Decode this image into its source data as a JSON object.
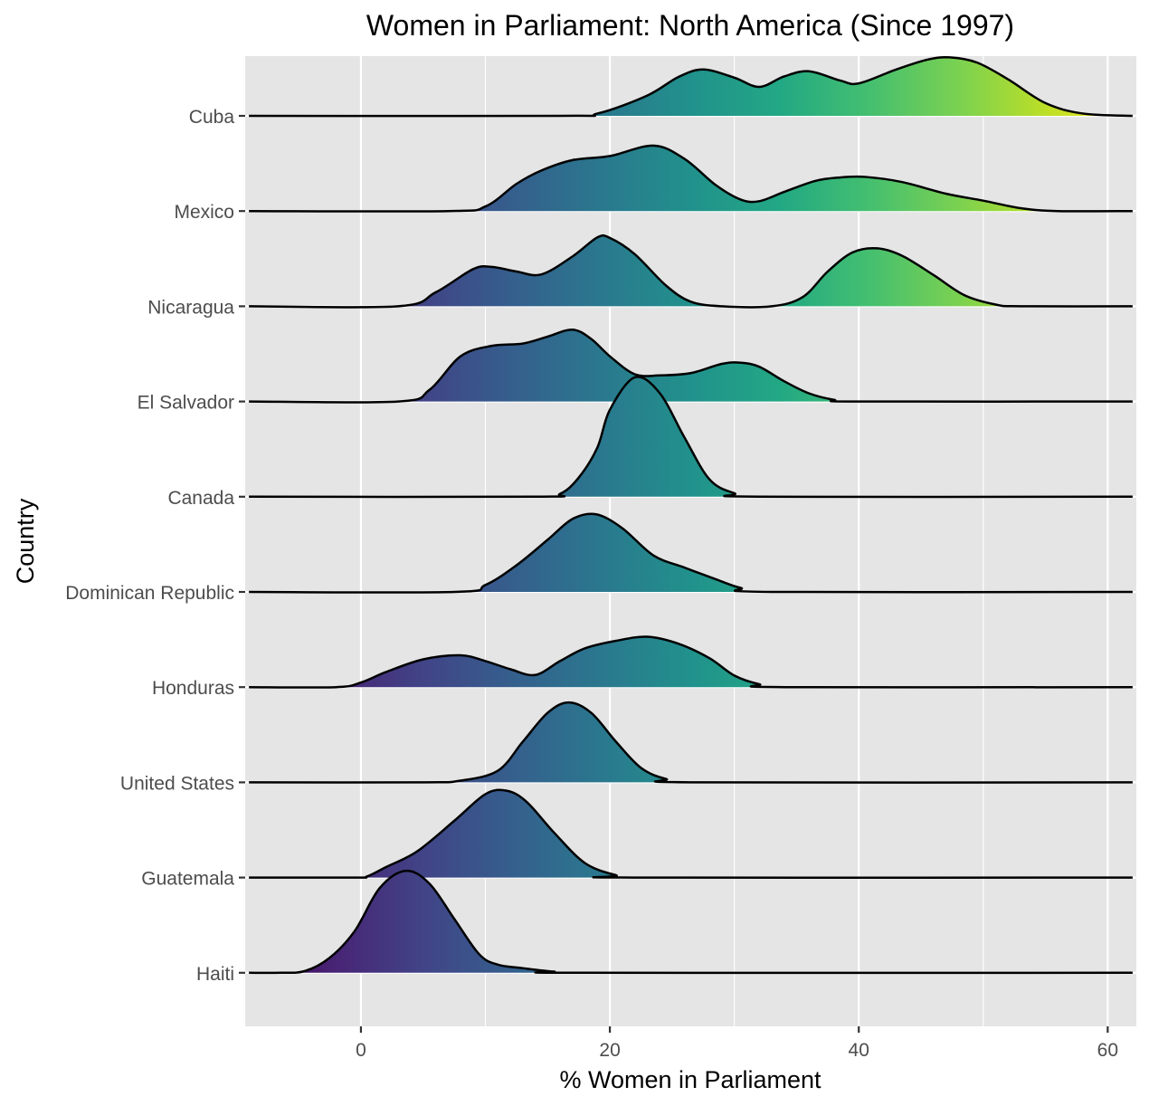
{
  "chart_data": {
    "type": "ridgeline",
    "title": "Women in Parliament: North America (Since 1997)",
    "xlabel": "% Women in Parliament",
    "ylabel": "Country",
    "xlim": [
      -9.3,
      62.3
    ],
    "x_ticks": [
      0,
      20,
      40,
      60
    ],
    "grid": true,
    "fill_scale": "viridis, by x value",
    "panel_background": "#e5e5e5",
    "gridline_color": "#ffffff",
    "outline_color": "#000000",
    "categories": [
      "Cuba",
      "Mexico",
      "Nicaragua",
      "El Salvador",
      "Canada",
      "Dominican Republic",
      "Honduras",
      "United States",
      "Guatemala",
      "Haiti"
    ],
    "series": [
      {
        "name": "Cuba",
        "points": [
          [
            -9,
            0
          ],
          [
            16,
            0
          ],
          [
            19,
            0.04
          ],
          [
            23,
            0.35
          ],
          [
            25.5,
            0.67
          ],
          [
            27.5,
            0.8
          ],
          [
            30,
            0.66
          ],
          [
            32,
            0.5
          ],
          [
            34,
            0.68
          ],
          [
            36,
            0.77
          ],
          [
            38.5,
            0.61
          ],
          [
            40,
            0.56
          ],
          [
            43,
            0.8
          ],
          [
            45.5,
            0.97
          ],
          [
            47.3,
            1.01
          ],
          [
            49.5,
            0.92
          ],
          [
            52,
            0.63
          ],
          [
            55,
            0.22
          ],
          [
            58,
            0.04
          ],
          [
            62,
            0
          ]
        ]
      },
      {
        "name": "Mexico",
        "points": [
          [
            -9,
            0
          ],
          [
            7,
            0
          ],
          [
            10,
            0.08
          ],
          [
            12.5,
            0.47
          ],
          [
            14.5,
            0.7
          ],
          [
            17,
            0.88
          ],
          [
            20,
            0.95
          ],
          [
            23.5,
            1.13
          ],
          [
            26,
            0.9
          ],
          [
            28.5,
            0.45
          ],
          [
            30.5,
            0.2
          ],
          [
            32,
            0.17
          ],
          [
            34,
            0.33
          ],
          [
            36.5,
            0.52
          ],
          [
            38.5,
            0.58
          ],
          [
            40.5,
            0.59
          ],
          [
            43.5,
            0.5
          ],
          [
            47,
            0.3
          ],
          [
            50,
            0.18
          ],
          [
            53,
            0.05
          ],
          [
            56,
            0
          ],
          [
            62,
            0
          ]
        ]
      },
      {
        "name": "Nicaragua",
        "points": [
          [
            -9,
            0
          ],
          [
            3,
            0
          ],
          [
            6,
            0.24
          ],
          [
            9,
            0.64
          ],
          [
            10.5,
            0.68
          ],
          [
            12.5,
            0.6
          ],
          [
            14.5,
            0.55
          ],
          [
            17,
            0.86
          ],
          [
            19,
            1.19
          ],
          [
            20,
            1.18
          ],
          [
            22,
            0.9
          ],
          [
            24.5,
            0.36
          ],
          [
            26.5,
            0.08
          ],
          [
            29,
            0
          ],
          [
            33,
            0
          ],
          [
            35.5,
            0.16
          ],
          [
            37.5,
            0.6
          ],
          [
            39.5,
            0.93
          ],
          [
            41.5,
            1.0
          ],
          [
            43.5,
            0.87
          ],
          [
            46,
            0.54
          ],
          [
            48.5,
            0.19
          ],
          [
            51,
            0.03
          ],
          [
            53,
            0
          ],
          [
            62,
            0
          ]
        ]
      },
      {
        "name": "El Salvador",
        "points": [
          [
            -9,
            0
          ],
          [
            3,
            0
          ],
          [
            5.5,
            0.2
          ],
          [
            8,
            0.78
          ],
          [
            10.5,
            0.96
          ],
          [
            13,
            1.0
          ],
          [
            15,
            1.12
          ],
          [
            17,
            1.24
          ],
          [
            18.5,
            1.08
          ],
          [
            20,
            0.78
          ],
          [
            22,
            0.47
          ],
          [
            24,
            0.45
          ],
          [
            26.5,
            0.49
          ],
          [
            29,
            0.65
          ],
          [
            30.5,
            0.67
          ],
          [
            32,
            0.6
          ],
          [
            34,
            0.35
          ],
          [
            36,
            0.14
          ],
          [
            38,
            0.03
          ],
          [
            40,
            0
          ],
          [
            62,
            0
          ]
        ]
      },
      {
        "name": "Canada",
        "points": [
          [
            -9,
            0
          ],
          [
            14,
            0
          ],
          [
            16,
            0.05
          ],
          [
            17.5,
            0.33
          ],
          [
            19,
            0.85
          ],
          [
            20,
            1.5
          ],
          [
            22,
            2.06
          ],
          [
            24,
            1.79
          ],
          [
            26,
            1.02
          ],
          [
            28,
            0.3
          ],
          [
            30,
            0.06
          ],
          [
            32,
            0
          ],
          [
            62,
            0
          ]
        ]
      },
      {
        "name": "Dominican Republic",
        "points": [
          [
            -9,
            0
          ],
          [
            7.5,
            0
          ],
          [
            10,
            0.12
          ],
          [
            12.5,
            0.46
          ],
          [
            15,
            0.9
          ],
          [
            17,
            1.26
          ],
          [
            18.9,
            1.34
          ],
          [
            21,
            1.1
          ],
          [
            23.5,
            0.63
          ],
          [
            26,
            0.42
          ],
          [
            28.5,
            0.22
          ],
          [
            30.5,
            0.07
          ],
          [
            33,
            0
          ],
          [
            62,
            0
          ]
        ]
      },
      {
        "name": "Honduras",
        "points": [
          [
            -9,
            0
          ],
          [
            -2,
            0
          ],
          [
            0,
            0.08
          ],
          [
            2,
            0.26
          ],
          [
            5,
            0.48
          ],
          [
            8,
            0.55
          ],
          [
            10,
            0.45
          ],
          [
            12,
            0.31
          ],
          [
            14,
            0.21
          ],
          [
            16,
            0.45
          ],
          [
            18,
            0.67
          ],
          [
            20.5,
            0.8
          ],
          [
            23,
            0.87
          ],
          [
            25.5,
            0.75
          ],
          [
            28,
            0.5
          ],
          [
            30,
            0.2
          ],
          [
            32,
            0.05
          ],
          [
            34,
            0
          ],
          [
            62,
            0
          ]
        ]
      },
      {
        "name": "United States",
        "points": [
          [
            -9,
            0
          ],
          [
            5,
            0
          ],
          [
            8,
            0.03
          ],
          [
            11,
            0.2
          ],
          [
            13,
            0.7
          ],
          [
            15,
            1.2
          ],
          [
            16.7,
            1.38
          ],
          [
            18.5,
            1.2
          ],
          [
            20.5,
            0.7
          ],
          [
            22.5,
            0.25
          ],
          [
            24.5,
            0.06
          ],
          [
            27,
            0
          ],
          [
            62,
            0
          ]
        ]
      },
      {
        "name": "Guatemala",
        "points": [
          [
            -9,
            0
          ],
          [
            -0.5,
            0
          ],
          [
            0.5,
            0.02
          ],
          [
            2,
            0.18
          ],
          [
            4.5,
            0.45
          ],
          [
            7.5,
            0.98
          ],
          [
            10,
            1.44
          ],
          [
            11.7,
            1.5
          ],
          [
            13.3,
            1.31
          ],
          [
            15.5,
            0.78
          ],
          [
            18,
            0.25
          ],
          [
            20.5,
            0.04
          ],
          [
            22,
            0
          ],
          [
            62,
            0
          ]
        ]
      },
      {
        "name": "Haiti",
        "points": [
          [
            -9,
            0
          ],
          [
            -6.5,
            0
          ],
          [
            -4.5,
            0.03
          ],
          [
            -2.5,
            0.26
          ],
          [
            -0.5,
            0.72
          ],
          [
            1.5,
            1.46
          ],
          [
            3.6,
            1.76
          ],
          [
            5.5,
            1.54
          ],
          [
            7.5,
            0.93
          ],
          [
            9.5,
            0.32
          ],
          [
            11,
            0.14
          ],
          [
            13,
            0.08
          ],
          [
            15.5,
            0.02
          ],
          [
            18,
            0
          ],
          [
            62,
            0
          ]
        ]
      }
    ]
  }
}
